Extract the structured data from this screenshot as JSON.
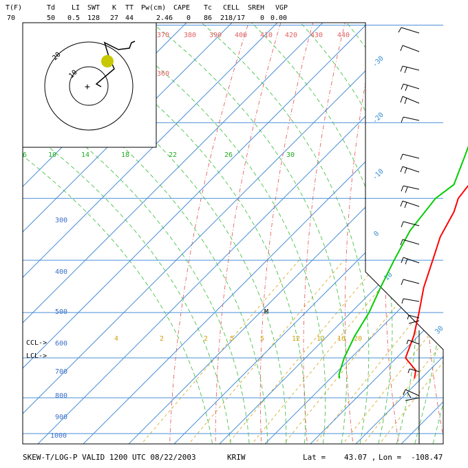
{
  "header": {
    "labels": [
      "T(F)",
      "Td",
      "LI",
      "SWT",
      "K",
      "TT",
      "Pw(cm)",
      "CAPE",
      "Tc",
      "CELL",
      "SREH",
      "VGP"
    ],
    "values": [
      "70",
      "50",
      "0.5",
      "128",
      "27",
      "44",
      "2.46",
      "0",
      "86",
      "218/17",
      "0",
      "0.00"
    ]
  },
  "footer": {
    "title": "SKEW-T/LOG-P VALID 1200 UTC 08/22/2003",
    "station": "KRIW",
    "lat_label": "Lat =",
    "lat_value": "43.07 ,",
    "lon_label": "Lon =",
    "lon_value": "-108.47"
  },
  "side_labels": {
    "ccl": "CCL->",
    "lcl": "LCL->"
  },
  "chart_data": {
    "type": "line",
    "title": "",
    "xlabel": "",
    "ylabel": "",
    "pressure_levels": [
      {
        "p": 1000,
        "label": "1000"
      },
      {
        "p": 900,
        "label": "900"
      },
      {
        "p": 800,
        "label": "800"
      },
      {
        "p": 700,
        "label": "700"
      },
      {
        "p": 600,
        "label": "600"
      },
      {
        "p": 500,
        "label": "500"
      },
      {
        "p": 400,
        "label": "400"
      },
      {
        "p": 300,
        "label": "300"
      }
    ],
    "isotherm_labels": [
      "-30",
      "-20",
      "-10",
      "0",
      "10",
      "30"
    ],
    "dry_adiabat_labels": [
      "370",
      "380",
      "390",
      "400",
      "410",
      "420",
      "430",
      "440",
      "360"
    ],
    "moist_adiabat_labels": [
      "6",
      "10",
      "14",
      "18",
      "22",
      "26",
      "30"
    ],
    "mixing_ratio_labels": [
      "4",
      "2",
      "2",
      "5",
      "8",
      "12",
      "16",
      "20"
    ],
    "series": [
      {
        "name": "",
        "color": "#ff0000",
        "points": [
          {
            "p": 850,
            "t": 18.5
          },
          {
            "p": 830,
            "t": 17.0
          },
          {
            "p": 800,
            "t": 12.0
          },
          {
            "p": 750,
            "t": 9.0
          },
          {
            "p": 700,
            "t": 5.0
          },
          {
            "p": 650,
            "t": 0.5
          },
          {
            "p": 600,
            "t": -3.5
          },
          {
            "p": 560,
            "t": -7.0
          },
          {
            "p": 520,
            "t": -9.5
          },
          {
            "p": 500,
            "t": -11.5
          },
          {
            "p": 470,
            "t": -12.5
          },
          {
            "p": 440,
            "t": -16.0
          },
          {
            "p": 410,
            "t": -19.5
          },
          {
            "p": 380,
            "t": -23.0
          },
          {
            "p": 350,
            "t": -27.0
          },
          {
            "p": 300,
            "t": -35.0
          },
          {
            "p": 270,
            "t": -40.0
          },
          {
            "p": 250,
            "t": -45.5
          },
          {
            "p": 230,
            "t": -50.0
          },
          {
            "p": 200,
            "t": -56.0
          },
          {
            "p": 180,
            "t": -60.0
          },
          {
            "p": 160,
            "t": -62.0
          },
          {
            "p": 150,
            "t": -61.0
          },
          {
            "p": 120,
            "t": -60.0
          },
          {
            "p": 105,
            "t": -58.0
          }
        ]
      },
      {
        "name": "",
        "color": "#00cc00",
        "points": [
          {
            "p": 850,
            "t": 2.0
          },
          {
            "p": 840,
            "t": 1.0
          },
          {
            "p": 800,
            "t": -1.5
          },
          {
            "p": 750,
            "t": -4.0
          },
          {
            "p": 700,
            "t": -6.0
          },
          {
            "p": 650,
            "t": -9.0
          },
          {
            "p": 600,
            "t": -12.0
          },
          {
            "p": 550,
            "t": -15.0
          },
          {
            "p": 500,
            "t": -16.5
          },
          {
            "p": 480,
            "t": -15.5
          },
          {
            "p": 440,
            "t": -19.5
          },
          {
            "p": 400,
            "t": -24.0
          },
          {
            "p": 370,
            "t": -29.0
          },
          {
            "p": 330,
            "t": -36.0
          },
          {
            "p": 300,
            "t": -41.0
          },
          {
            "p": 270,
            "t": -46.5
          },
          {
            "p": 250,
            "t": -49.0
          }
        ]
      }
    ]
  },
  "hodograph": {
    "ring_labels": [
      "10",
      "20"
    ]
  }
}
